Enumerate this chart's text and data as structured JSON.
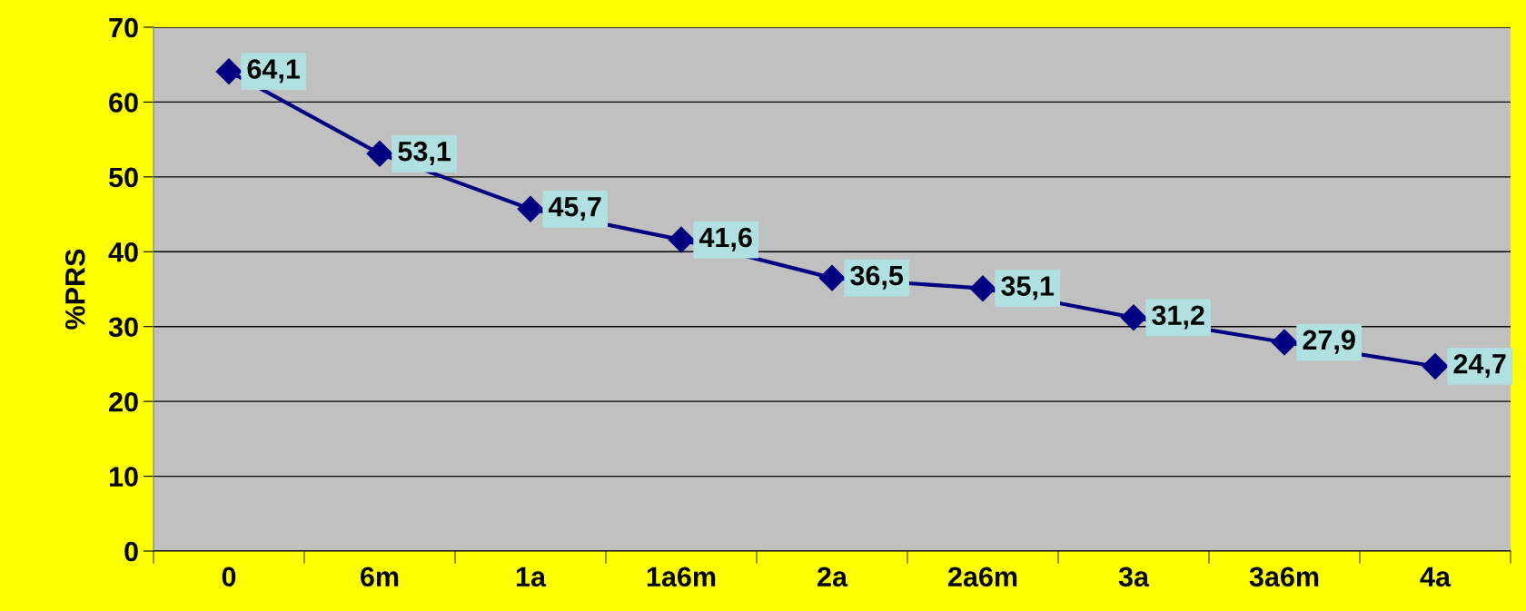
{
  "chart_data": {
    "type": "line",
    "ylabel": "%PRS",
    "categories": [
      "0",
      "6m",
      "1a",
      "1a6m",
      "2a",
      "2a6m",
      "3a",
      "3a6m",
      "4a"
    ],
    "series": [
      {
        "color": "#000080",
        "values": [
          64.1,
          53.1,
          45.7,
          41.6,
          36.5,
          35.1,
          31.2,
          27.9,
          24.7
        ],
        "value_labels": [
          "64,1",
          "53,1",
          "45,7",
          "41,6",
          "36,5",
          "35,1",
          "31,2",
          "27,9",
          "24,7"
        ]
      }
    ],
    "ylim": [
      0,
      70
    ],
    "yticks": [
      0,
      10,
      20,
      30,
      40,
      50,
      60,
      70
    ],
    "grid": "y",
    "marker": "diamond",
    "line_style": "solid",
    "legend": false
  }
}
